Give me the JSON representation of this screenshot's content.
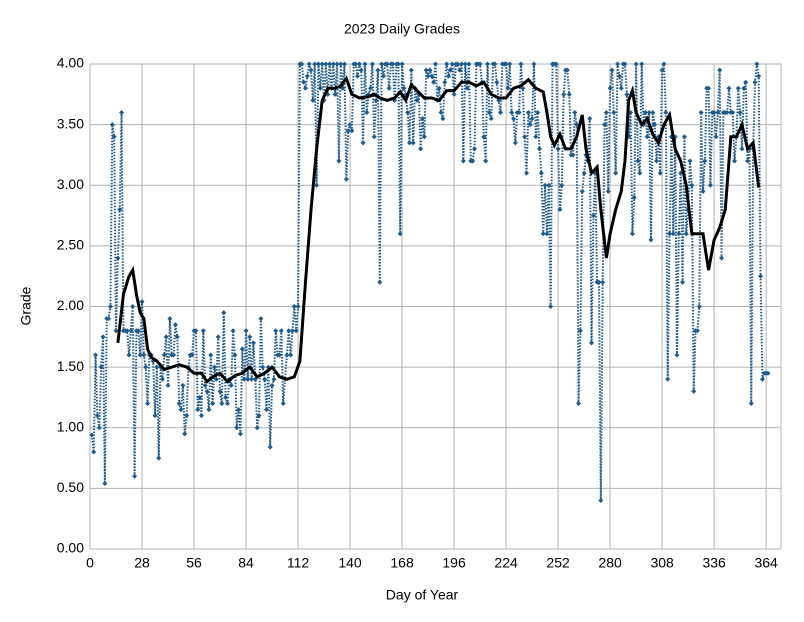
{
  "chart_data": {
    "type": "line",
    "title": "2023 Daily Grades",
    "xlabel": "Day of Year",
    "ylabel": "Grade",
    "xlim": [
      0,
      372
    ],
    "xticks": [
      0,
      28,
      56,
      84,
      112,
      140,
      168,
      196,
      224,
      252,
      280,
      308,
      336,
      364
    ],
    "ylim": [
      0,
      4
    ],
    "yticks": [
      {
        "value": 0,
        "label": "0.00"
      },
      {
        "value": 0.5,
        "label": "0.50"
      },
      {
        "value": 1,
        "label": "1.00"
      },
      {
        "value": 1.5,
        "label": "1.50"
      },
      {
        "value": 2,
        "label": "2.00"
      },
      {
        "value": 2.5,
        "label": "2.50"
      },
      {
        "value": 3,
        "label": "3.00"
      },
      {
        "value": 3.5,
        "label": "3.50"
      },
      {
        "value": 4,
        "label": "4.00"
      }
    ],
    "grid": true,
    "series": [
      {
        "color": "#1f5a8c",
        "style": "dotted",
        "markers": true,
        "x": [
          1,
          2,
          3,
          4,
          5,
          6,
          7,
          8,
          9,
          10,
          11,
          12,
          13,
          14,
          15,
          16,
          17,
          18,
          19,
          20,
          21,
          22,
          23,
          24,
          25,
          26,
          27,
          28,
          29,
          30,
          31,
          32,
          33,
          34,
          35,
          36,
          37,
          38,
          39,
          40,
          41,
          42,
          43,
          44,
          45,
          46,
          47,
          48,
          49,
          50,
          51,
          52,
          53,
          54,
          55,
          56,
          57,
          58,
          59,
          60,
          61,
          62,
          63,
          64,
          65,
          66,
          67,
          68,
          69,
          70,
          71,
          72,
          73,
          74,
          75,
          76,
          77,
          78,
          79,
          80,
          81,
          82,
          83,
          84,
          85,
          86,
          87,
          88,
          89,
          90,
          91,
          92,
          93,
          94,
          95,
          96,
          97,
          98,
          99,
          100,
          101,
          102,
          103,
          104,
          105,
          106,
          107,
          108,
          109,
          110,
          111,
          112,
          113,
          114,
          115,
          116,
          117,
          118,
          119,
          120,
          121,
          122,
          123,
          124,
          125,
          126,
          127,
          128,
          129,
          130,
          131,
          132,
          133,
          134,
          135,
          136,
          137,
          138,
          139,
          140,
          141,
          142,
          143,
          144,
          145,
          146,
          147,
          148,
          149,
          150,
          151,
          152,
          153,
          154,
          155,
          156,
          157,
          158,
          159,
          160,
          161,
          162,
          163,
          164,
          165,
          166,
          167,
          168,
          169,
          170,
          171,
          172,
          173,
          174,
          175,
          176,
          177,
          178,
          179,
          180,
          181,
          182,
          183,
          184,
          185,
          186,
          187,
          188,
          189,
          190,
          191,
          192,
          193,
          194,
          195,
          196,
          197,
          198,
          199,
          200,
          201,
          202,
          203,
          204,
          205,
          206,
          207,
          208,
          209,
          210,
          211,
          212,
          213,
          214,
          215,
          216,
          217,
          218,
          219,
          220,
          221,
          222,
          223,
          224,
          225,
          226,
          227,
          228,
          229,
          230,
          231,
          232,
          233,
          234,
          235,
          236,
          237,
          238,
          239,
          240,
          241,
          242,
          243,
          244,
          245,
          246,
          247,
          248,
          249,
          250,
          251,
          252,
          253,
          254,
          255,
          256,
          257,
          258,
          259,
          260,
          261,
          262,
          263,
          264,
          265,
          266,
          267,
          268,
          269,
          270,
          271,
          272,
          273,
          274,
          275,
          276,
          277,
          278,
          279,
          280,
          281,
          282,
          283,
          284,
          285,
          286,
          287,
          288,
          289,
          290,
          291,
          292,
          293,
          294,
          295,
          296,
          297,
          298,
          299,
          300,
          301,
          302,
          303,
          304,
          305,
          306,
          307,
          308,
          309,
          310,
          311,
          312,
          313,
          314,
          315,
          316,
          317,
          318,
          319,
          320,
          321,
          322,
          323,
          324,
          325,
          326,
          327,
          328,
          329,
          330,
          331,
          332,
          333,
          334,
          335,
          336,
          337,
          338,
          339,
          340,
          341,
          342,
          343,
          344,
          345,
          346,
          347,
          348,
          349,
          350,
          351,
          352,
          353,
          354,
          355,
          356,
          357,
          358,
          359,
          360,
          361,
          362,
          363,
          364,
          365
        ],
        "values": [
          0.94,
          0.8,
          1.6,
          1.1,
          1.0,
          1.5,
          1.75,
          0.54,
          1.9,
          1.9,
          2.0,
          3.5,
          3.4,
          1.8,
          2.4,
          2.8,
          3.6,
          1.8,
          1.8,
          1.8,
          1.6,
          1.8,
          2.0,
          0.6,
          1.8,
          1.8,
          1.6,
          2.04,
          1.6,
          1.5,
          1.2,
          1.6,
          1.6,
          1.55,
          1.1,
          1.5,
          0.75,
          1.5,
          1.4,
          1.6,
          1.75,
          1.35,
          1.9,
          1.6,
          1.6,
          1.85,
          1.75,
          1.2,
          1.15,
          1.35,
          0.95,
          1.1,
          1.5,
          1.6,
          1.6,
          1.8,
          1.8,
          1.15,
          1.25,
          1.1,
          1.8,
          1.35,
          1.3,
          1.15,
          1.6,
          1.2,
          1.5,
          1.4,
          1.75,
          1.3,
          1.2,
          1.95,
          1.25,
          1.2,
          1.4,
          1.35,
          1.8,
          1.6,
          1.0,
          1.15,
          0.95,
          1.65,
          1.4,
          1.8,
          1.4,
          1.75,
          1.4,
          1.7,
          1.4,
          1.0,
          1.1,
          1.9,
          1.5,
          1.4,
          1.15,
          1.5,
          0.84,
          1.35,
          1.4,
          1.8,
          1.6,
          1.6,
          1.8,
          1.2,
          1.4,
          1.6,
          1.8,
          1.6,
          1.8,
          2.0,
          1.8,
          2.0,
          4.0,
          4.0,
          3.85,
          3.8,
          3.9,
          4.0,
          3.95,
          3.7,
          4.0,
          3.0,
          4.0,
          3.8,
          4.0,
          3.7,
          4.0,
          3.75,
          4.0,
          3.8,
          4.0,
          3.75,
          4.0,
          3.2,
          4.0,
          3.8,
          4.0,
          3.05,
          3.45,
          3.5,
          3.45,
          4.0,
          4.0,
          3.9,
          4.0,
          3.95,
          3.35,
          4.0,
          3.6,
          3.75,
          3.8,
          4.0,
          3.4,
          3.7,
          3.95,
          2.2,
          4.0,
          3.9,
          4.0,
          4.0,
          3.8,
          4.0,
          4.0,
          3.7,
          4.0,
          4.0,
          2.6,
          4.0,
          3.8,
          3.75,
          3.6,
          3.35,
          3.95,
          3.35,
          3.8,
          3.7,
          3.75,
          3.3,
          3.55,
          3.4,
          3.95,
          3.9,
          3.95,
          3.9,
          3.85,
          4.0,
          3.7,
          3.8,
          3.6,
          3.55,
          3.85,
          4.0,
          3.9,
          3.95,
          4.0,
          3.75,
          4.0,
          4.0,
          3.95,
          4.0,
          3.2,
          4.0,
          3.8,
          4.0,
          3.2,
          3.2,
          3.3,
          4.0,
          4.0,
          4.0,
          3.85,
          3.4,
          3.2,
          4.0,
          3.6,
          3.55,
          4.0,
          4.0,
          3.85,
          3.7,
          3.6,
          4.0,
          4.0,
          4.0,
          3.8,
          4.0,
          3.6,
          3.55,
          3.35,
          3.6,
          3.6,
          4.0,
          3.8,
          3.4,
          3.1,
          3.6,
          3.5,
          3.55,
          4.0,
          3.4,
          3.6,
          3.3,
          3.1,
          2.6,
          3.0,
          2.6,
          3.0,
          2.0,
          4.0,
          4.0,
          4.0,
          3.3,
          2.8,
          3.0,
          3.75,
          3.95,
          3.95,
          3.75,
          3.25,
          3.25,
          3.6,
          3.5,
          1.2,
          1.8,
          2.95,
          3.1,
          3.25,
          3.2,
          3.55,
          1.7,
          2.75,
          3.1,
          2.2,
          2.2,
          0.4,
          2.2,
          3.5,
          3.6,
          2.95,
          3.8,
          3.95,
          3.6,
          3.1,
          4.0,
          3.9,
          3.8,
          4.0,
          4.0,
          3.75,
          3.4,
          3.6,
          2.6,
          2.9,
          4.0,
          3.2,
          3.1,
          4.0,
          3.5,
          3.6,
          3.4,
          3.6,
          2.55,
          3.6,
          3.5,
          3.2,
          3.4,
          3.1,
          3.95,
          4.0,
          3.6,
          1.4,
          2.6,
          3.4,
          2.6,
          3.4,
          1.6,
          2.6,
          3.1,
          2.2,
          3.4,
          2.6,
          2.8,
          3.2,
          3.0,
          1.3,
          1.8,
          1.8,
          2.0,
          3.6,
          2.95,
          3.2,
          3.8,
          3.8,
          3.0,
          3.6,
          3.6,
          3.4,
          3.6,
          3.95,
          2.4,
          3.6,
          3.6,
          3.6,
          3.8,
          3.6,
          3.6,
          3.2,
          3.4,
          3.8,
          3.6,
          3.3,
          3.8,
          3.85,
          3.2,
          3.3,
          1.2,
          3.3,
          3.85,
          4.0,
          3.9,
          2.25,
          1.4,
          1.45,
          1.45,
          1.45
        ]
      },
      {
        "color": "#000000",
        "style": "solid",
        "markers": false,
        "x": [
          15,
          18,
          21,
          23,
          25,
          27,
          29,
          31,
          33,
          36,
          40,
          44,
          48,
          52,
          56,
          60,
          63,
          66,
          70,
          74,
          78,
          82,
          86,
          90,
          94,
          98,
          102,
          106,
          110,
          113,
          116,
          119,
          122,
          125,
          128,
          132,
          135,
          138,
          141,
          145,
          150,
          153,
          156,
          160,
          164,
          167,
          170,
          173,
          176,
          180,
          184,
          188,
          192,
          196,
          200,
          204,
          208,
          212,
          216,
          220,
          224,
          228,
          232,
          236,
          240,
          244,
          246,
          248,
          250,
          253,
          256,
          259,
          262,
          265,
          267,
          270,
          273,
          275,
          278,
          280,
          283,
          286,
          288,
          290,
          292,
          294,
          297,
          300,
          303,
          306,
          309,
          312,
          315,
          318,
          321,
          324,
          327,
          330,
          333,
          336,
          339,
          342,
          345,
          348,
          351,
          354,
          357,
          360
        ],
        "values": [
          1.7,
          2.1,
          2.25,
          2.3,
          2.1,
          1.95,
          1.9,
          1.65,
          1.58,
          1.55,
          1.48,
          1.5,
          1.52,
          1.5,
          1.45,
          1.45,
          1.38,
          1.42,
          1.45,
          1.38,
          1.43,
          1.45,
          1.5,
          1.42,
          1.45,
          1.5,
          1.42,
          1.4,
          1.42,
          1.55,
          2.2,
          2.8,
          3.3,
          3.7,
          3.8,
          3.8,
          3.82,
          3.88,
          3.75,
          3.72,
          3.73,
          3.75,
          3.72,
          3.7,
          3.72,
          3.77,
          3.7,
          3.83,
          3.78,
          3.72,
          3.72,
          3.7,
          3.78,
          3.78,
          3.85,
          3.85,
          3.82,
          3.85,
          3.75,
          3.72,
          3.72,
          3.8,
          3.82,
          3.87,
          3.8,
          3.77,
          3.6,
          3.4,
          3.33,
          3.42,
          3.3,
          3.3,
          3.4,
          3.58,
          3.3,
          3.1,
          3.15,
          2.8,
          2.4,
          2.6,
          2.8,
          2.95,
          3.2,
          3.7,
          3.78,
          3.6,
          3.5,
          3.55,
          3.42,
          3.35,
          3.5,
          3.58,
          3.3,
          3.2,
          3.0,
          2.6,
          2.6,
          2.6,
          2.3,
          2.55,
          2.65,
          2.8,
          3.4,
          3.4,
          3.5,
          3.3,
          3.35,
          2.98
        ]
      }
    ]
  }
}
